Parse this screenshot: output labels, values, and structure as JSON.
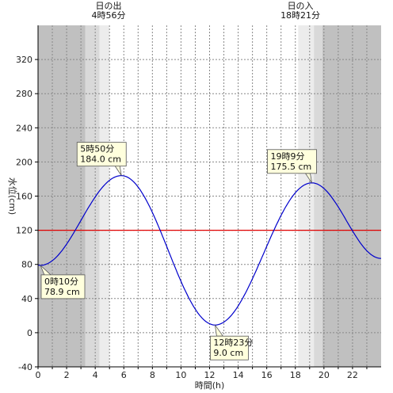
{
  "chart_data": {
    "type": "line",
    "xlabel": "時間(h)",
    "ylabel": "水位(cm)",
    "xlim": [
      0,
      24
    ],
    "ylim": [
      -40,
      360
    ],
    "xticks": [
      0,
      2,
      4,
      6,
      8,
      10,
      12,
      14,
      16,
      18,
      20,
      22
    ],
    "yticks": [
      -40,
      0,
      40,
      80,
      120,
      160,
      200,
      240,
      280,
      320
    ],
    "grid": true,
    "reference_line": {
      "value": 120,
      "color": "#e00000"
    },
    "line_color": "#0000cc",
    "sun": {
      "sunrise": {
        "title": "日の出",
        "time": "4時56分",
        "hour": 4.933
      },
      "sunset": {
        "title": "日の入",
        "time": "18時21分",
        "hour": 18.35
      }
    },
    "shading": {
      "night_color": "#c0c0c0",
      "twilight_color": "#d9d9d9",
      "dawn_color": "#ececec",
      "day_color": "#ffffff",
      "bands": [
        {
          "from": 0,
          "to": 3.3,
          "level": "night"
        },
        {
          "from": 3.3,
          "to": 4.3,
          "level": "twilight"
        },
        {
          "from": 4.3,
          "to": 5.0,
          "level": "dawn"
        },
        {
          "from": 5.0,
          "to": 18.2,
          "level": "day"
        },
        {
          "from": 18.2,
          "to": 19.3,
          "level": "dawn"
        },
        {
          "from": 19.3,
          "to": 19.9,
          "level": "twilight"
        },
        {
          "from": 19.9,
          "to": 24,
          "level": "night"
        }
      ]
    },
    "extremes": [
      {
        "type": "low",
        "hour": 0.167,
        "level": 78.9,
        "time_label": "0時10分",
        "level_label": "78.9 cm"
      },
      {
        "type": "high",
        "hour": 5.833,
        "level": 184.0,
        "time_label": "5時50分",
        "level_label": "184.0 cm"
      },
      {
        "type": "low",
        "hour": 12.383,
        "level": 9.0,
        "time_label": "12時23分",
        "level_label": "9.0 cm"
      },
      {
        "type": "high",
        "hour": 19.15,
        "level": 175.5,
        "time_label": "19時9分",
        "level_label": "175.5 cm"
      }
    ],
    "end_point": {
      "hour": 24,
      "level": 87
    }
  }
}
